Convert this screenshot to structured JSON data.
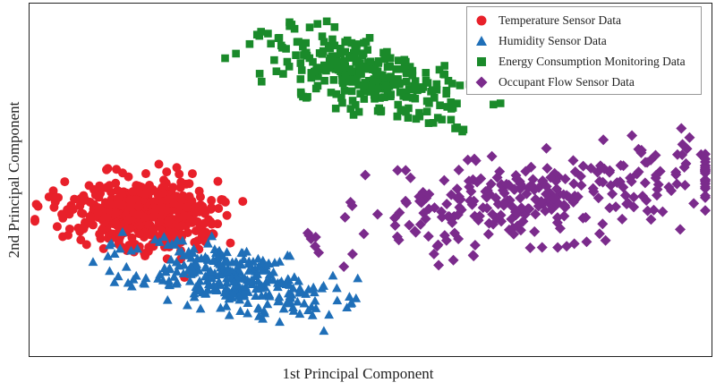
{
  "chart_data": {
    "type": "scatter",
    "title": "",
    "xlabel": "1st Principal Component",
    "ylabel": "2nd Principal Component",
    "xlim": [
      0,
      100
    ],
    "ylim": [
      0,
      100
    ],
    "grid": false,
    "ticks_shown": false,
    "legend_position": "top-right",
    "series": [
      {
        "name": "Temperature Sensor Data",
        "marker": "circle",
        "color": "#e8202a",
        "clusters": [
          {
            "points": 240,
            "center": [
              18,
              42
            ],
            "spread": [
              5.0,
              5.0
            ],
            "angle_deg": -33
          },
          {
            "points": 250,
            "center": [
              15.5,
              37.8
            ],
            "spread": [
              6.5,
              4.0
            ],
            "angle_deg": -33
          }
        ]
      },
      {
        "name": "Humidity Sensor Data",
        "marker": "triangle",
        "color": "#1f6fb8",
        "clusters": [
          {
            "points": 300,
            "center": [
              29,
              22
            ],
            "spread": [
              8.5,
              4.2
            ],
            "angle_deg": -27
          }
        ]
      },
      {
        "name": "Energy Consumption Monitoring Data",
        "marker": "square",
        "color": "#1a8a2a",
        "clusters": [
          {
            "points": 300,
            "center": [
              49.6,
              79
            ],
            "spread": [
              8.8,
              4.3
            ],
            "angle_deg": -35
          }
        ]
      },
      {
        "name": "Occupant Flow Sensor Data",
        "marker": "diamond",
        "color": "#7b2b8c",
        "clusters": [
          {
            "points": 300,
            "center": [
              75.2,
              44.3
            ],
            "spread": [
              15.5,
              6.0
            ],
            "angle_deg": 16
          }
        ]
      }
    ]
  }
}
